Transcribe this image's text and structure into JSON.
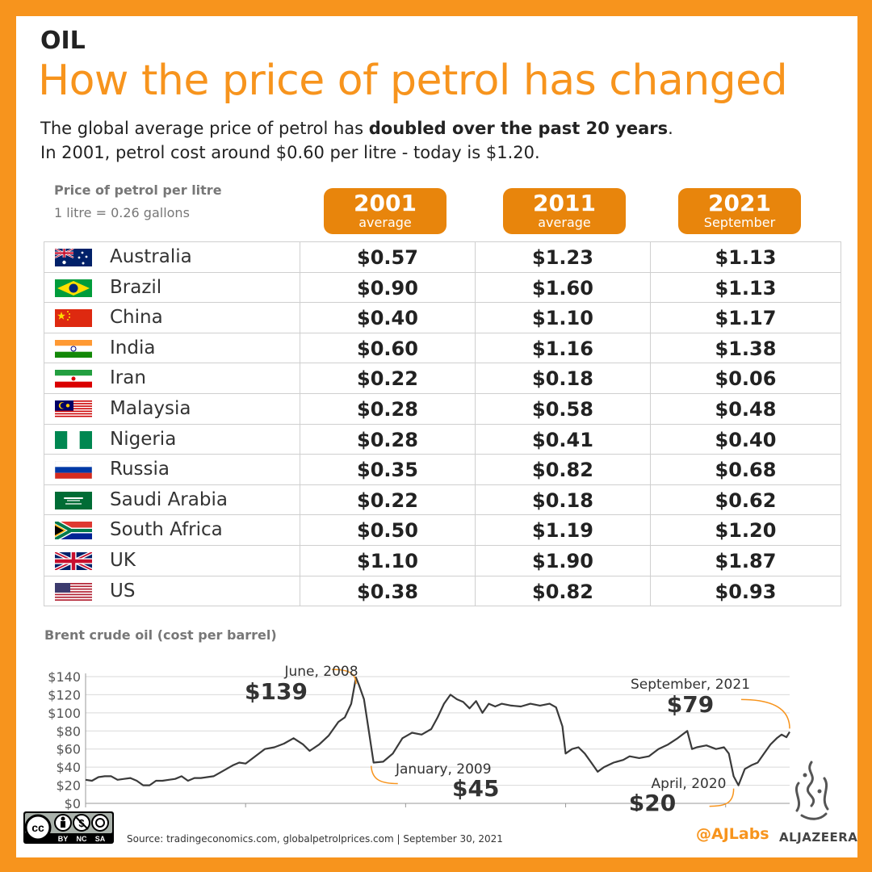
{
  "header": {
    "section": "OIL",
    "title": "How the price of petrol has changed",
    "subtitle_line1_pre": "The global average price of petrol has ",
    "subtitle_line1_bold": "doubled over the past 20 years",
    "subtitle_line1_post": ".",
    "subtitle_line2": "In 2001, petrol cost around $0.60 per litre - today is $1.20."
  },
  "table": {
    "label": "Price of petrol per litre",
    "note": "1 litre = 0.26 gallons",
    "columns": [
      {
        "year": "2001",
        "sub": "average"
      },
      {
        "year": "2011",
        "sub": "average"
      },
      {
        "year": "2021",
        "sub": "September"
      }
    ],
    "rows": [
      {
        "country": "Australia",
        "flag": "australia-flag-icon",
        "v2001": "$0.57",
        "v2011": "$1.23",
        "v2021": "$1.13"
      },
      {
        "country": "Brazil",
        "flag": "brazil-flag-icon",
        "v2001": "$0.90",
        "v2011": "$1.60",
        "v2021": "$1.13"
      },
      {
        "country": "China",
        "flag": "china-flag-icon",
        "v2001": "$0.40",
        "v2011": "$1.10",
        "v2021": "$1.17"
      },
      {
        "country": "India",
        "flag": "india-flag-icon",
        "v2001": "$0.60",
        "v2011": "$1.16",
        "v2021": "$1.38"
      },
      {
        "country": "Iran",
        "flag": "iran-flag-icon",
        "v2001": "$0.22",
        "v2011": "$0.18",
        "v2021": "$0.06"
      },
      {
        "country": "Malaysia",
        "flag": "malaysia-flag-icon",
        "v2001": "$0.28",
        "v2011": "$0.58",
        "v2021": "$0.48"
      },
      {
        "country": "Nigeria",
        "flag": "nigeria-flag-icon",
        "v2001": "$0.28",
        "v2011": "$0.41",
        "v2021": "$0.40"
      },
      {
        "country": "Russia",
        "flag": "russia-flag-icon",
        "v2001": "$0.35",
        "v2011": "$0.82",
        "v2021": "$0.68"
      },
      {
        "country": "Saudi Arabia",
        "flag": "saudi-arabia-flag-icon",
        "v2001": "$0.22",
        "v2011": "$0.18",
        "v2021": "$0.62"
      },
      {
        "country": "South Africa",
        "flag": "south-africa-flag-icon",
        "v2001": "$0.50",
        "v2011": "$1.19",
        "v2021": "$1.20"
      },
      {
        "country": "UK",
        "flag": "uk-flag-icon",
        "v2001": "$1.10",
        "v2011": "$1.90",
        "v2021": "$1.87"
      },
      {
        "country": "US",
        "flag": "us-flag-icon",
        "v2001": "$0.38",
        "v2011": "$0.82",
        "v2021": "$0.93"
      }
    ]
  },
  "chart_data": {
    "type": "line",
    "title": "Brent crude oil (cost per barrel)",
    "xlabel": "",
    "ylabel": "",
    "xlim": [
      2000,
      2022
    ],
    "ylim": [
      0,
      140
    ],
    "x_ticks": [
      2000,
      2005,
      2010,
      2015,
      2020
    ],
    "y_ticks": [
      0,
      20,
      40,
      60,
      80,
      100,
      120,
      140
    ],
    "y_tick_labels": [
      "$0",
      "$20",
      "$40",
      "$60",
      "$80",
      "$100",
      "$120",
      "$140"
    ],
    "grid": "horizontal",
    "colors": {
      "line": "#3a3a3a",
      "callout": "#f7941d"
    },
    "series": [
      {
        "x": [
          2000.0,
          2000.2,
          2000.4,
          2000.6,
          2000.8,
          2001.0,
          2001.2,
          2001.4,
          2001.6,
          2001.8,
          2002.0,
          2002.2,
          2002.4,
          2002.6,
          2002.8,
          2003.0,
          2003.2,
          2003.4,
          2003.6,
          2003.8,
          2004.0,
          2004.2,
          2004.4,
          2004.6,
          2004.8,
          2005.0,
          2005.3,
          2005.6,
          2005.9,
          2006.2,
          2006.5,
          2006.8,
          2007.0,
          2007.3,
          2007.6,
          2007.9,
          2008.1,
          2008.3,
          2008.45,
          2008.55,
          2008.7,
          2008.85,
          2009.0,
          2009.3,
          2009.6,
          2009.9,
          2010.2,
          2010.5,
          2010.8,
          2011.0,
          2011.2,
          2011.4,
          2011.6,
          2011.8,
          2012.0,
          2012.2,
          2012.4,
          2012.6,
          2012.8,
          2013.0,
          2013.3,
          2013.6,
          2013.9,
          2014.2,
          2014.5,
          2014.7,
          2014.9,
          2015.0,
          2015.2,
          2015.4,
          2015.6,
          2015.8,
          2016.0,
          2016.2,
          2016.5,
          2016.8,
          2017.0,
          2017.3,
          2017.6,
          2017.9,
          2018.2,
          2018.5,
          2018.8,
          2018.95,
          2019.1,
          2019.4,
          2019.7,
          2019.95,
          2020.1,
          2020.25,
          2020.4,
          2020.6,
          2020.8,
          2021.0,
          2021.2,
          2021.4,
          2021.6,
          2021.75,
          2021.9,
          2022.0
        ],
        "y": [
          26,
          25,
          29,
          30,
          30,
          26,
          27,
          28,
          25,
          20,
          20,
          25,
          25,
          26,
          27,
          30,
          25,
          28,
          28,
          29,
          30,
          34,
          38,
          42,
          45,
          44,
          52,
          60,
          62,
          66,
          72,
          65,
          58,
          65,
          75,
          90,
          95,
          110,
          139,
          130,
          115,
          80,
          45,
          46,
          55,
          72,
          78,
          76,
          82,
          95,
          110,
          120,
          115,
          112,
          105,
          113,
          100,
          110,
          107,
          110,
          108,
          107,
          110,
          108,
          110,
          106,
          85,
          55,
          60,
          62,
          55,
          45,
          35,
          40,
          45,
          48,
          52,
          50,
          52,
          60,
          65,
          72,
          80,
          60,
          62,
          64,
          60,
          62,
          55,
          30,
          20,
          38,
          42,
          45,
          55,
          65,
          72,
          76,
          73,
          79
        ]
      }
    ],
    "annotations": [
      {
        "label": "June, 2008",
        "value": "$139",
        "x": 2008.45,
        "y": 139
      },
      {
        "label": "January, 2009",
        "value": "$45",
        "x": 2009.0,
        "y": 45
      },
      {
        "label": "April, 2020",
        "value": "$20",
        "x": 2020.25,
        "y": 20
      },
      {
        "label": "September, 2021",
        "value": "$79",
        "x": 2022.0,
        "y": 79
      }
    ]
  },
  "footer": {
    "license_labels": [
      "BY",
      "NC",
      "SA"
    ],
    "source": "Source: tradingeconomics.com,  globalpetrolprices.com  |  September 30, 2021",
    "ajlabs": "@AJLabs",
    "brand": "ALJAZEERA"
  }
}
